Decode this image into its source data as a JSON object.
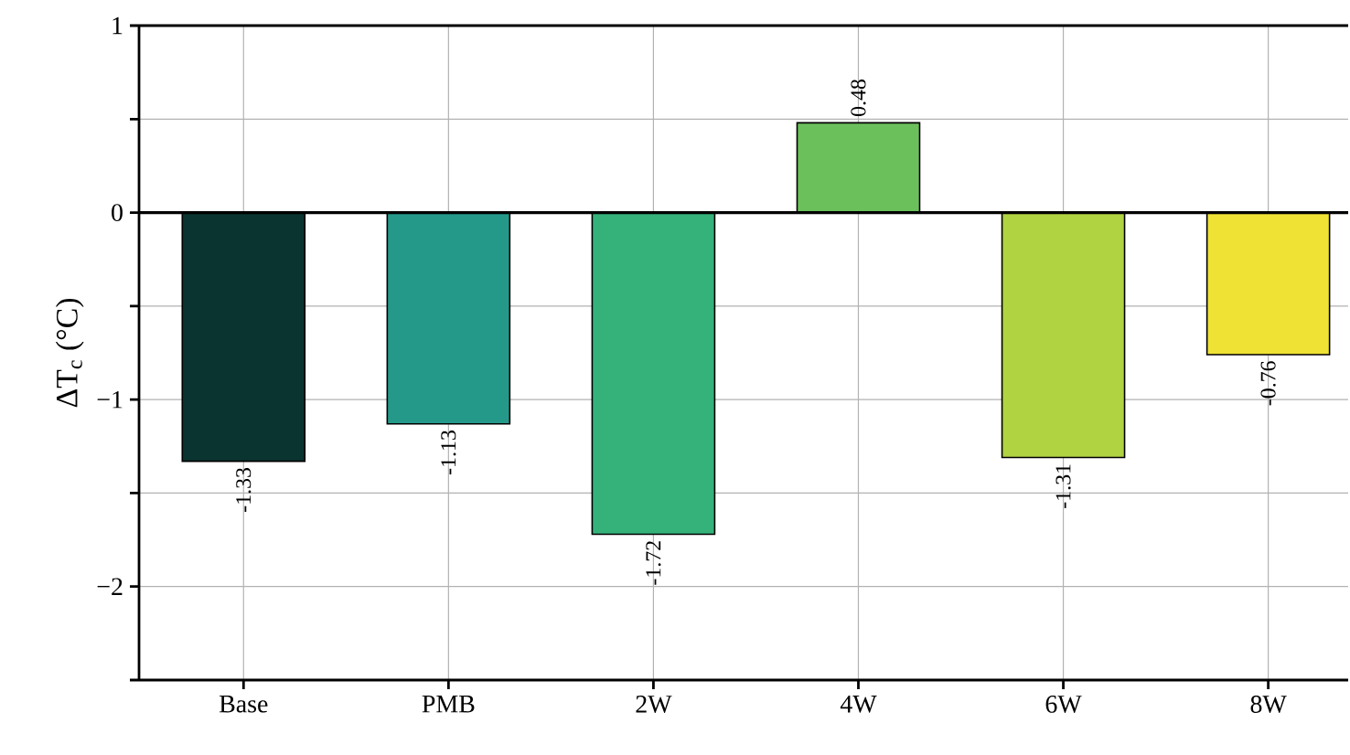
{
  "chart_data": {
    "type": "bar",
    "ylabel": "ΔT$_{c}$ (°C)",
    "categories": [
      "Base",
      "PMB",
      "2W",
      "4W",
      "6W",
      "8W"
    ],
    "values": [
      -1.33,
      -1.13,
      -1.72,
      0.48,
      -1.31,
      -0.76
    ],
    "colors": [
      "#0a3430",
      "#24998a",
      "#35b27a",
      "#6cc05c",
      "#b0d342",
      "#efe235"
    ],
    "ylim": [
      -2.5,
      1
    ],
    "yticks": [
      {
        "value": -2.5,
        "label": null
      },
      {
        "value": -2,
        "label": "−2"
      },
      {
        "value": -1.5,
        "label": null
      },
      {
        "value": -1,
        "label": "−1"
      },
      {
        "value": -0.5,
        "label": null
      },
      {
        "value": 0,
        "label": "0"
      },
      {
        "value": 0.5,
        "label": null
      },
      {
        "value": 1,
        "label": "1"
      }
    ],
    "grid": true,
    "data_labels": true
  }
}
